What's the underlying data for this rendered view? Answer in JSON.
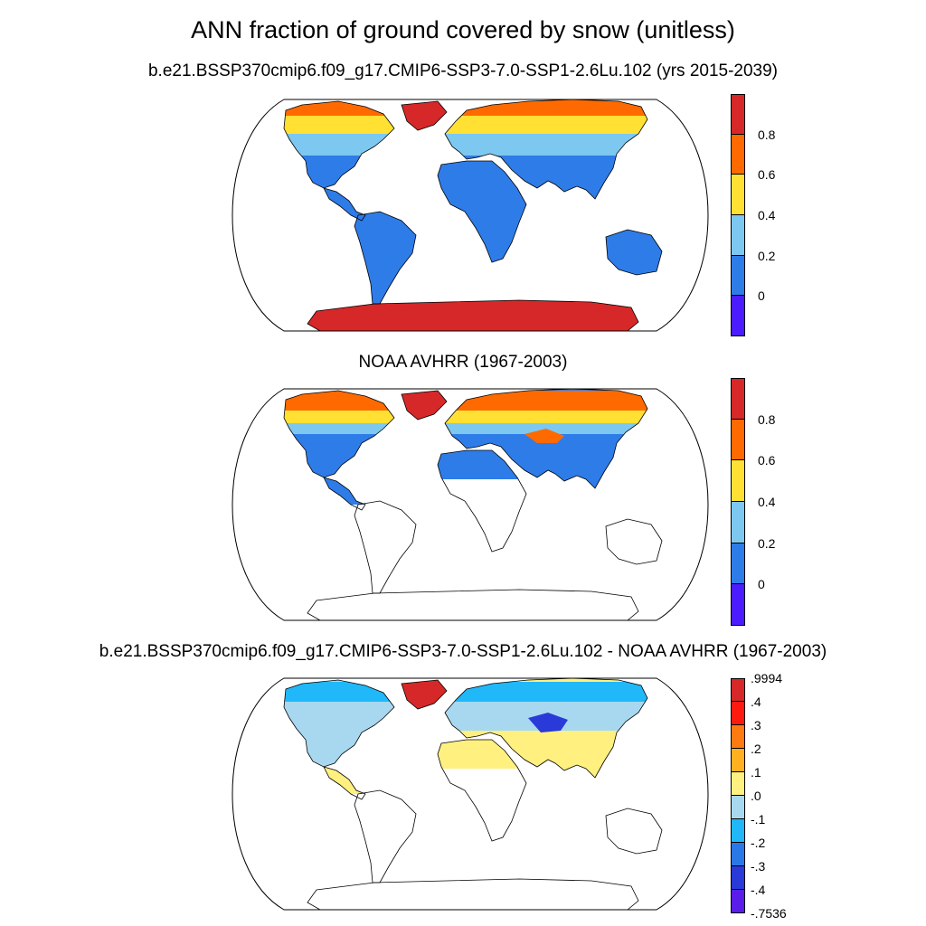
{
  "main_title": "ANN fraction of ground covered by snow (unitless)",
  "panels": [
    {
      "title": "b.e21.BSSP370cmip6.f09_g17.CMIP6-SSP3-7.0-SSP1-2.6Lu.102 (yrs 2015-2039)",
      "colorbar": {
        "colors": [
          "#d62828",
          "#ff6a00",
          "#ffe033",
          "#7cc8f0",
          "#2e7ce8",
          "#4a1cff"
        ],
        "tick_labels": [
          "0.8",
          "0.6",
          "0.4",
          "0.2",
          "0"
        ]
      }
    },
    {
      "title": "NOAA AVHRR (1967-2003)",
      "colorbar": {
        "colors": [
          "#d62828",
          "#ff6a00",
          "#ffe033",
          "#7cc8f0",
          "#2e7ce8",
          "#4a1cff"
        ],
        "tick_labels": [
          "0.8",
          "0.6",
          "0.4",
          "0.2",
          "0"
        ]
      }
    },
    {
      "title": "b.e21.BSSP370cmip6.f09_g17.CMIP6-SSP3-7.0-SSP1-2.6Lu.102 - NOAA AVHRR (1967-2003)",
      "colorbar": {
        "colors": [
          "#d62828",
          "#ff1a10",
          "#ff7a10",
          "#ffb020",
          "#fff080",
          "#a8d8f0",
          "#20b8f8",
          "#2a78e8",
          "#2a3ad8",
          "#5a1ce8"
        ],
        "tick_labels": [
          ".9994",
          ".4",
          ".3",
          ".2",
          ".1",
          ".0",
          "-.1",
          "-.2",
          "-.3",
          "-.4",
          "-.7536"
        ]
      }
    }
  ]
}
